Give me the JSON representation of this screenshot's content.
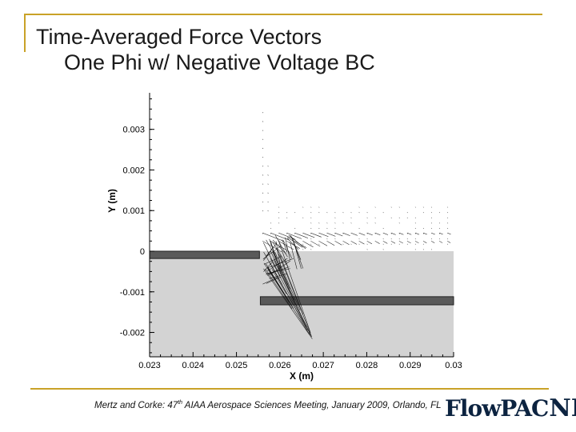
{
  "slide": {
    "title_line1": "Time-Averaged Force Vectors",
    "title_line2": "One Phi w/ Negative Voltage BC",
    "footer_text": "Mertz and Corke: 47",
    "footer_sup": "th",
    "footer_rest": " AIAA Aerospace Sciences Meeting, January 2009, Orlando, FL",
    "logo_text": "FlowPAC",
    "logo_mark": "ND",
    "accent_color": "#c9a227"
  },
  "chart_data": {
    "type": "scatter",
    "title": "",
    "xlabel": "X (m)",
    "ylabel": "Y (m)",
    "xlim": [
      0.023,
      0.03
    ],
    "ylim": [
      -0.0026,
      0.0039
    ],
    "xticks": [
      0.023,
      0.024,
      0.025,
      0.026,
      0.027,
      0.028,
      0.029,
      0.03
    ],
    "xtick_labels": [
      "0.023",
      "0.024",
      "0.025",
      "0.026",
      "0.027",
      "0.028",
      "0.029",
      "0.03"
    ],
    "yticks": [
      0.003,
      0.002,
      0.001,
      0,
      -0.001,
      -0.002
    ],
    "ytick_labels": [
      "0.003",
      "0.002",
      "0.001",
      "0",
      "-0.001",
      "-0.002"
    ],
    "grid": false,
    "dielectric_color": "#d3d3d3",
    "electrode_color": "#5a5a5a",
    "exposed_electrode": {
      "x": [
        0.023,
        0.02553
      ],
      "y": [
        -0.00018,
        0
      ]
    },
    "covered_electrode": {
      "x": [
        0.02555,
        0.03
      ],
      "y": [
        -0.00132,
        -0.00112
      ]
    },
    "dielectric": {
      "x": [
        0.023,
        0.03
      ],
      "y": [
        -0.0026,
        0
      ]
    },
    "vector_origin_x": 0.0256,
    "vector_target": {
      "x": 0.02676,
      "y": -0.00218
    }
  }
}
